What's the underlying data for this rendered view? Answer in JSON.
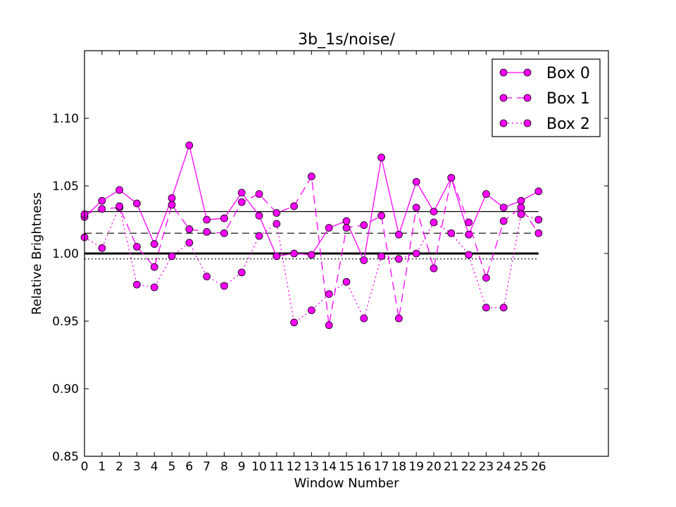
{
  "chart_data": {
    "type": "line",
    "title": "3b_1s/noise/",
    "xlabel": "Window Number",
    "ylabel": "Relative Brightness",
    "xlim": [
      0,
      30
    ],
    "ylim": [
      0.85,
      1.15
    ],
    "xticks": [
      0,
      1,
      2,
      3,
      4,
      5,
      6,
      7,
      8,
      9,
      10,
      11,
      12,
      13,
      14,
      15,
      16,
      17,
      18,
      19,
      20,
      21,
      22,
      23,
      24,
      25,
      26
    ],
    "yticks": [
      0.85,
      0.9,
      0.95,
      1.0,
      1.05,
      1.1
    ],
    "ytick_labels": [
      "0.85",
      "0.90",
      "0.95",
      "1.00",
      "1.05",
      "1.10"
    ],
    "grid": false,
    "legend_position": "top-right",
    "marker_color": "#ff00ff",
    "line_color": "#ff00ff",
    "x": [
      0,
      1,
      2,
      3,
      4,
      5,
      6,
      7,
      8,
      9,
      10,
      11,
      12,
      13,
      14,
      15,
      16,
      17,
      18,
      19,
      20,
      21,
      22,
      23,
      24,
      25,
      26
    ],
    "series": [
      {
        "name": "Box 0",
        "linestyle": "solid",
        "values": [
          1.027,
          1.039,
          1.047,
          1.037,
          1.007,
          1.041,
          1.08,
          1.025,
          1.026,
          1.045,
          1.028,
          0.998,
          1.0,
          0.999,
          1.019,
          1.024,
          0.995,
          1.071,
          1.014,
          1.053,
          1.031,
          1.056,
          1.014,
          1.044,
          1.034,
          1.039,
          1.046
        ]
      },
      {
        "name": "Box 1",
        "linestyle": "dashed",
        "values": [
          1.029,
          1.033,
          1.034,
          1.005,
          0.99,
          1.036,
          1.018,
          1.016,
          1.015,
          1.038,
          1.044,
          1.03,
          1.035,
          1.057,
          0.947,
          1.019,
          1.021,
          1.028,
          0.952,
          1.034,
          0.989,
          1.056,
          1.023,
          0.982,
          1.024,
          1.034,
          1.015
        ]
      },
      {
        "name": "Box 2",
        "linestyle": "dotted",
        "values": [
          1.012,
          1.004,
          1.035,
          0.977,
          0.975,
          0.998,
          1.008,
          0.983,
          0.976,
          0.986,
          1.013,
          1.022,
          0.949,
          0.958,
          0.97,
          0.979,
          0.952,
          0.998,
          0.996,
          1.0,
          1.023,
          1.015,
          0.999,
          0.96,
          0.96,
          1.029,
          1.025
        ]
      }
    ],
    "reference_lines": [
      {
        "value": 1.0,
        "style": "solid-thick"
      },
      {
        "value": 1.031,
        "style": "solid"
      },
      {
        "value": 1.015,
        "style": "dashed"
      },
      {
        "value": 0.996,
        "style": "dotted"
      }
    ]
  }
}
